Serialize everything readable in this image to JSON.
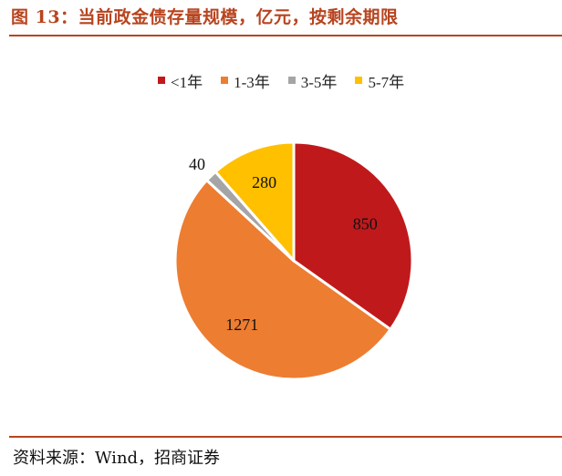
{
  "header": {
    "title": "图 13：当前政金债存量规模，亿元，按剩余期限"
  },
  "footer": {
    "source": "资料来源：Wind，招商证券"
  },
  "chart_data": {
    "type": "pie",
    "title": "",
    "legend_position": "top",
    "series": [
      {
        "name": "<1年",
        "value": 850,
        "color": "#c0191c"
      },
      {
        "name": "1-3年",
        "value": 1271,
        "color": "#ed7d31"
      },
      {
        "name": "3-5年",
        "value": 40,
        "color": "#a5a5a5"
      },
      {
        "name": "5-7年",
        "value": 280,
        "color": "#ffc000"
      }
    ],
    "start_angle_deg": 0,
    "direction": "clockwise",
    "border_color": "#ffffff"
  }
}
